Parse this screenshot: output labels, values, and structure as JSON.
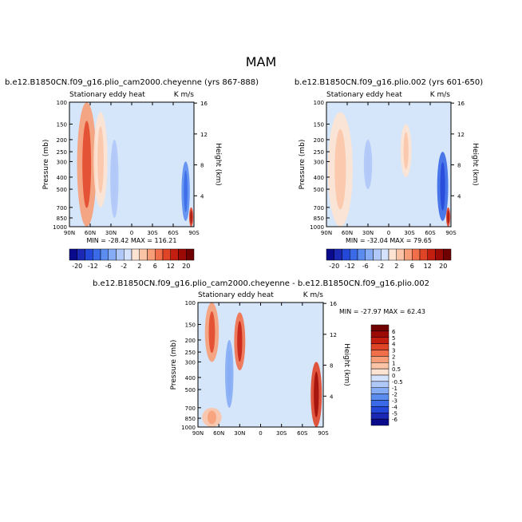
{
  "figure": {
    "title": "MAM"
  },
  "chart_data": [
    {
      "type": "heatmap",
      "title": "b.e12.B1850CN.f09_g16.plio_cam2000.cheyenne (yrs 867-888)",
      "subtitle_left": "Stationary eddy heat",
      "units": "K m/s",
      "xlabel": "",
      "ylabel": "Pressure (mb)",
      "ylabel_right": "Height (km)",
      "x_ticks": [
        "90N",
        "60N",
        "30N",
        "0",
        "30S",
        "60S",
        "90S"
      ],
      "y_ticks": [
        "100",
        "150",
        "200",
        "250",
        "300",
        "400",
        "500",
        "700",
        "850",
        "1000"
      ],
      "y_ticks_right": [
        "16",
        "12",
        "8",
        "4"
      ],
      "stats": "MIN = -28.42   MAX = 116.21",
      "colorbar": {
        "labels": [
          "-20",
          "-12",
          "-6",
          "-2",
          "2",
          "6",
          "12",
          "20"
        ],
        "levels": [
          -20,
          -16,
          -12,
          -9,
          -6,
          -4,
          -2,
          -1,
          1,
          2,
          4,
          6,
          9,
          12,
          16,
          20
        ]
      },
      "features": [
        {
          "lat": 65,
          "p_top": 100,
          "p_bot": 1000,
          "value": 4,
          "width_deg": 14
        },
        {
          "lat": 45,
          "p_top": 120,
          "p_bot": 700,
          "value": 1,
          "width_deg": 10
        },
        {
          "lat": 25,
          "p_top": 200,
          "p_bot": 850,
          "value": -2,
          "width_deg": 6
        },
        {
          "lat": -78,
          "p_top": 300,
          "p_bot": 900,
          "value": -6,
          "width_deg": 6
        },
        {
          "lat": -86,
          "p_top": 700,
          "p_bot": 1000,
          "value": 8,
          "width_deg": 3
        }
      ]
    },
    {
      "type": "heatmap",
      "title": "b.e12.B1850CN.f09_g16.plio.002 (yrs 601-650)",
      "subtitle_left": "Stationary eddy heat",
      "units": "K m/s",
      "xlabel": "",
      "ylabel": "Pressure (mb)",
      "ylabel_right": "Height (km)",
      "x_ticks": [
        "90N",
        "60N",
        "30N",
        "0",
        "30S",
        "60S",
        "90S"
      ],
      "y_ticks": [
        "100",
        "150",
        "200",
        "250",
        "300",
        "400",
        "500",
        "700",
        "850",
        "1000"
      ],
      "y_ticks_right": [
        "16",
        "12",
        "8",
        "4"
      ],
      "stats": "MIN = -32.04   MAX = 79.65",
      "colorbar": {
        "labels": [
          "-20",
          "-12",
          "-6",
          "-2",
          "2",
          "6",
          "12",
          "20"
        ],
        "levels": [
          -20,
          -16,
          -12,
          -9,
          -6,
          -4,
          -2,
          -1,
          1,
          2,
          4,
          6,
          9,
          12,
          16,
          20
        ]
      },
      "features": [
        {
          "lat": 70,
          "p_top": 120,
          "p_bot": 1000,
          "value": 1,
          "width_deg": 18
        },
        {
          "lat": 30,
          "p_top": 200,
          "p_bot": 500,
          "value": -2,
          "width_deg": 6
        },
        {
          "lat": -25,
          "p_top": 150,
          "p_bot": 400,
          "value": 1,
          "width_deg": 8
        },
        {
          "lat": -78,
          "p_top": 250,
          "p_bot": 900,
          "value": -9,
          "width_deg": 8
        },
        {
          "lat": -86,
          "p_top": 700,
          "p_bot": 1000,
          "value": 8,
          "width_deg": 3
        }
      ]
    },
    {
      "type": "heatmap",
      "title": "b.e12.B1850CN.f09_g16.plio_cam2000.cheyenne - b.e12.B1850CN.f09_g16.plio.002",
      "subtitle_left": "Stationary eddy heat",
      "units": "K m/s",
      "xlabel": "",
      "ylabel": "Pressure (mb)",
      "ylabel_right": "Height (km)",
      "x_ticks": [
        "90N",
        "60N",
        "30N",
        "0",
        "30S",
        "60S",
        "90S"
      ],
      "y_ticks": [
        "100",
        "150",
        "200",
        "250",
        "300",
        "400",
        "500",
        "700",
        "850",
        "1000"
      ],
      "y_ticks_right": [
        "16",
        "12",
        "8",
        "4"
      ],
      "stats": "MIN = -27.97   MAX =  62.43",
      "colorbar": {
        "labels": [
          "6",
          "5",
          "4",
          "3",
          "2",
          "1",
          "0.5",
          "0",
          "-0.5",
          "-1",
          "-2",
          "-3",
          "-4",
          "-5",
          "-6"
        ],
        "levels": [
          6,
          5,
          4,
          3,
          2,
          1,
          0.5,
          0,
          -0.5,
          -1,
          -2,
          -3,
          -4,
          -5,
          -6
        ]
      },
      "features": [
        {
          "lat": 70,
          "p_top": 100,
          "p_bot": 300,
          "value": 2,
          "width_deg": 10
        },
        {
          "lat": 30,
          "p_top": 120,
          "p_bot": 350,
          "value": 3,
          "width_deg": 8
        },
        {
          "lat": 45,
          "p_top": 200,
          "p_bot": 700,
          "value": -1,
          "width_deg": 6
        },
        {
          "lat": -80,
          "p_top": 300,
          "p_bot": 1000,
          "value": 4,
          "width_deg": 8
        },
        {
          "lat": 70,
          "p_top": 700,
          "p_bot": 1000,
          "value": 1,
          "width_deg": 14
        }
      ]
    }
  ]
}
